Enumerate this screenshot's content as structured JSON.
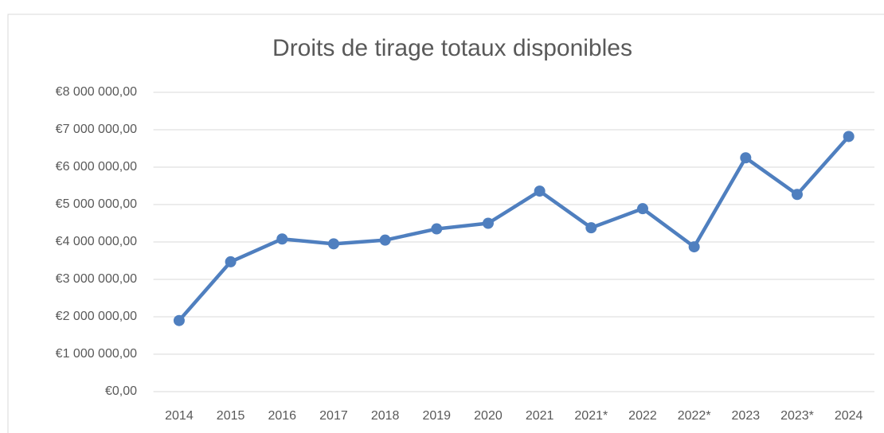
{
  "chart_data": {
    "type": "line",
    "title": "Droits de tirage totaux disponibles",
    "categories": [
      "2014",
      "2015",
      "2016",
      "2017",
      "2018",
      "2019",
      "2020",
      "2021",
      "2021*",
      "2022",
      "2022*",
      "2023",
      "2023*",
      "2024"
    ],
    "series": [
      {
        "name": "Droits de tirage totaux disponibles",
        "color": "#4f7fbf",
        "values": [
          1900000,
          3470000,
          4080000,
          3950000,
          4050000,
          4350000,
          4500000,
          5360000,
          4380000,
          4890000,
          3870000,
          6250000,
          5270000,
          6820000
        ]
      }
    ],
    "ylim": [
      0,
      8000000
    ],
    "yticks": [
      {
        "value": 0,
        "label": "€0,00"
      },
      {
        "value": 1000000,
        "label": "€1 000 000,00"
      },
      {
        "value": 2000000,
        "label": "€2 000 000,00"
      },
      {
        "value": 3000000,
        "label": "€3 000 000,00"
      },
      {
        "value": 4000000,
        "label": "€4 000 000,00"
      },
      {
        "value": 5000000,
        "label": "€5 000 000,00"
      },
      {
        "value": 6000000,
        "label": "€6 000 000,00"
      },
      {
        "value": 7000000,
        "label": "€7 000 000,00"
      },
      {
        "value": 8000000,
        "label": "€8 000 000,00"
      }
    ],
    "grid": true
  }
}
